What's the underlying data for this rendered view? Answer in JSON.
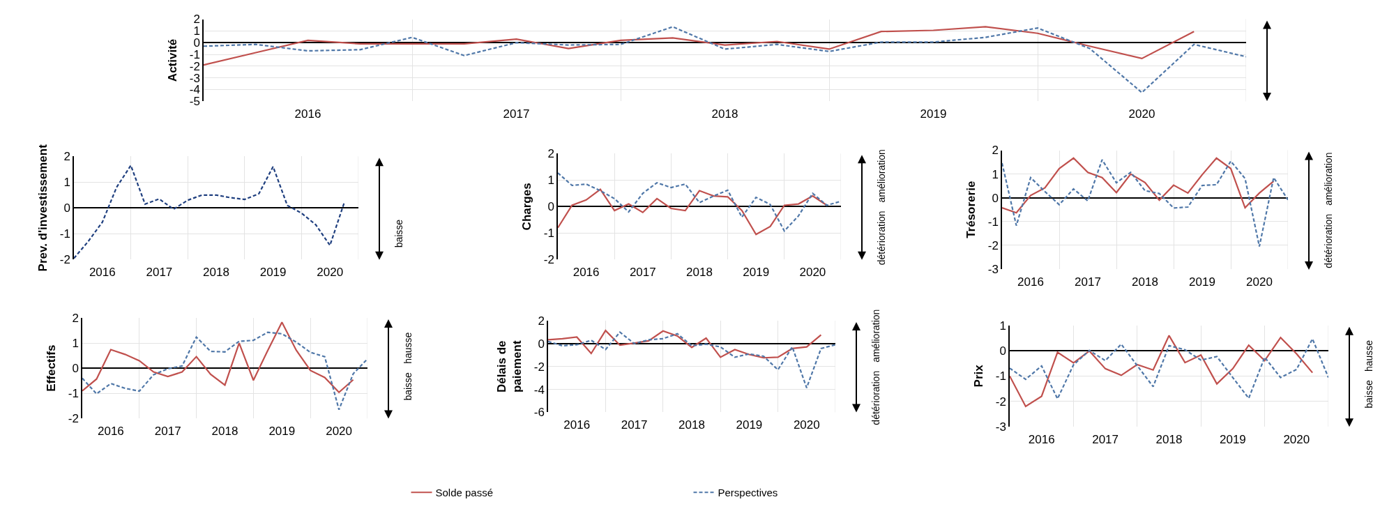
{
  "chart_data": [
    {
      "type": "line",
      "ylabel": "Activité",
      "x": [
        2016,
        2016.25,
        2016.5,
        2016.75,
        2017,
        2017.25,
        2017.5,
        2017.75,
        2018,
        2018.25,
        2018.5,
        2018.75,
        2019,
        2019.25,
        2019.5,
        2019.75,
        2020,
        2020.25,
        2020.5,
        2020.75,
        2021
      ],
      "xlim": [
        2016,
        2021
      ],
      "xticks": [
        {
          "value": 2016,
          "label": null
        },
        {
          "value": 2016.5,
          "label": "2016"
        },
        {
          "value": 2017,
          "label": null
        },
        {
          "value": 2017.5,
          "label": "2017"
        },
        {
          "value": 2018,
          "label": null
        },
        {
          "value": 2018.5,
          "label": "2018"
        },
        {
          "value": 2019,
          "label": null
        },
        {
          "value": 2019.5,
          "label": "2019"
        },
        {
          "value": 2020,
          "label": null
        },
        {
          "value": 2020.5,
          "label": "2020"
        },
        {
          "value": 2021,
          "label": null
        }
      ],
      "ylim": [
        -5,
        2
      ],
      "yticks": [
        -5,
        -4,
        -3,
        -2,
        -1,
        0,
        1,
        2
      ],
      "grid": true,
      "marker": "none",
      "series": [
        {
          "color": "#c0504d",
          "line_style": "solid",
          "values": [
            -1.9,
            -0.85,
            0.2,
            -0.1,
            -0.1,
            -0.1,
            0.3,
            -0.5,
            0.2,
            0.4,
            -0.2,
            0.1,
            -0.55,
            0.95,
            1.05,
            1.35,
            0.8,
            -0.3,
            -1.35,
            0.95,
            null
          ]
        },
        {
          "color": "#4f77a8",
          "line_style": "dashed",
          "values": [
            -0.3,
            -0.15,
            -0.7,
            -0.6,
            0.45,
            -1.1,
            0,
            -0.2,
            -0.15,
            1.35,
            -0.55,
            -0.15,
            -0.75,
            0.05,
            0.05,
            0.45,
            1.25,
            -0.5,
            -4.25,
            -0.15,
            -1.2
          ]
        }
      ]
    },
    {
      "type": "line",
      "ylabel": "Prev. d'investissement",
      "xlim": [
        2016,
        2021
      ],
      "xticks": [
        {
          "value": 2016,
          "label": null
        },
        {
          "value": 2016.5,
          "label": "2016"
        },
        {
          "value": 2017,
          "label": null
        },
        {
          "value": 2017.5,
          "label": "2017"
        },
        {
          "value": 2018,
          "label": null
        },
        {
          "value": 2018.5,
          "label": "2018"
        },
        {
          "value": 2019,
          "label": null
        },
        {
          "value": 2019.5,
          "label": "2019"
        },
        {
          "value": 2020,
          "label": null
        },
        {
          "value": 2020.5,
          "label": "2020"
        },
        {
          "value": 2021,
          "label": null
        }
      ],
      "ylim": [
        -2,
        2
      ],
      "yticks": [
        -2,
        -1,
        0,
        1,
        2
      ],
      "grid": true,
      "marker": "none",
      "series": [
        {
          "color": "#1f3f7f",
          "line_style": "dashed",
          "x": [
            2016,
            2016.25,
            2016.5,
            2016.75,
            2017,
            2017.25,
            2017.5,
            2017.75,
            2018,
            2018.25,
            2018.5,
            2018.75,
            2019,
            2019.25,
            2019.5,
            2019.75,
            2020,
            2020.25,
            2020.5,
            2020.75
          ],
          "values": [
            -1.95,
            -1.3,
            -0.55,
            0.8,
            1.65,
            0.15,
            0.35,
            -0.05,
            0.3,
            0.5,
            0.5,
            0.4,
            0.33,
            0.55,
            1.6,
            0.1,
            -0.2,
            -0.65,
            -1.45,
            0.2
          ]
        }
      ],
      "annotations": [
        "baisse"
      ]
    },
    {
      "type": "line",
      "ylabel": "Charges",
      "x": [
        2016,
        2016.25,
        2016.5,
        2016.75,
        2017,
        2017.25,
        2017.5,
        2017.75,
        2018,
        2018.25,
        2018.5,
        2018.75,
        2019,
        2019.25,
        2019.5,
        2019.75,
        2020,
        2020.25,
        2020.5,
        2020.75,
        2021
      ],
      "xlim": [
        2016,
        2021
      ],
      "xticks": [
        {
          "value": 2016,
          "label": null
        },
        {
          "value": 2016.5,
          "label": "2016"
        },
        {
          "value": 2017,
          "label": null
        },
        {
          "value": 2017.5,
          "label": "2017"
        },
        {
          "value": 2018,
          "label": null
        },
        {
          "value": 2018.5,
          "label": "2018"
        },
        {
          "value": 2019,
          "label": null
        },
        {
          "value": 2019.5,
          "label": "2019"
        },
        {
          "value": 2020,
          "label": null
        },
        {
          "value": 2020.5,
          "label": "2020"
        },
        {
          "value": 2021,
          "label": null
        }
      ],
      "ylim": [
        -2,
        2
      ],
      "yticks": [
        -2,
        -1,
        0,
        1,
        2
      ],
      "grid": true,
      "marker": "none",
      "series": [
        {
          "color": "#c0504d",
          "line_style": "solid",
          "values": [
            -0.8,
            0.05,
            0.25,
            0.65,
            -0.15,
            0.1,
            -0.22,
            0.3,
            -0.07,
            -0.15,
            0.6,
            0.4,
            0.37,
            -0.15,
            -1.05,
            -0.75,
            0.05,
            0.1,
            0.4,
            0.05,
            null
          ]
        },
        {
          "color": "#4f77a8",
          "line_style": "dashed",
          "values": [
            1.27,
            0.8,
            0.85,
            0.6,
            0.3,
            -0.2,
            0.5,
            0.9,
            0.72,
            0.85,
            0.15,
            0.4,
            0.62,
            -0.4,
            0.35,
            0.08,
            -0.92,
            -0.35,
            0.5,
            0.05,
            0.2
          ]
        }
      ],
      "annotations": [
        "amélioration",
        "détérioration"
      ]
    },
    {
      "type": "line",
      "ylabel": "Trésorerie",
      "x": [
        2016,
        2016.25,
        2016.5,
        2016.75,
        2017,
        2017.25,
        2017.5,
        2017.75,
        2018,
        2018.25,
        2018.5,
        2018.75,
        2019,
        2019.25,
        2019.5,
        2019.75,
        2020,
        2020.25,
        2020.5,
        2020.75,
        2021
      ],
      "xlim": [
        2016,
        2021
      ],
      "xticks": [
        {
          "value": 2016,
          "label": null
        },
        {
          "value": 2016.5,
          "label": "2016"
        },
        {
          "value": 2017,
          "label": null
        },
        {
          "value": 2017.5,
          "label": "2017"
        },
        {
          "value": 2018,
          "label": null
        },
        {
          "value": 2018.5,
          "label": "2018"
        },
        {
          "value": 2019,
          "label": null
        },
        {
          "value": 2019.5,
          "label": "2019"
        },
        {
          "value": 2020,
          "label": null
        },
        {
          "value": 2020.5,
          "label": "2020"
        },
        {
          "value": 2021,
          "label": null
        }
      ],
      "ylim": [
        -3,
        2
      ],
      "yticks": [
        -3,
        -2,
        -1,
        0,
        1,
        2
      ],
      "grid": true,
      "marker": "none",
      "series": [
        {
          "color": "#c0504d",
          "line_style": "solid",
          "values": [
            -0.42,
            -0.63,
            0.1,
            0.42,
            1.23,
            1.67,
            1.07,
            0.85,
            0.22,
            1.0,
            0.64,
            -0.1,
            0.53,
            0.2,
            0.97,
            1.67,
            1.23,
            -0.42,
            0.2,
            0.7,
            null
          ]
        },
        {
          "color": "#4f77a8",
          "line_style": "dashed",
          "values": [
            1.46,
            -1.17,
            0.85,
            0.26,
            -0.29,
            0.37,
            -0.13,
            1.6,
            0.63,
            1.07,
            0.3,
            0.18,
            -0.43,
            -0.39,
            0.52,
            0.55,
            1.54,
            0.81,
            -2.05,
            0.85,
            -0.09
          ]
        }
      ],
      "annotations": [
        "amélioration",
        "détérioration"
      ]
    },
    {
      "type": "line",
      "ylabel": "Effectifs",
      "x": [
        2016,
        2016.25,
        2016.5,
        2016.75,
        2017,
        2017.25,
        2017.5,
        2017.75,
        2018,
        2018.25,
        2018.5,
        2018.75,
        2019,
        2019.25,
        2019.5,
        2019.75,
        2020,
        2020.25,
        2020.5,
        2020.75,
        2021
      ],
      "xlim": [
        2016,
        2021
      ],
      "xticks": [
        {
          "value": 2016,
          "label": null
        },
        {
          "value": 2016.5,
          "label": "2016"
        },
        {
          "value": 2017,
          "label": null
        },
        {
          "value": 2017.5,
          "label": "2017"
        },
        {
          "value": 2018,
          "label": null
        },
        {
          "value": 2018.5,
          "label": "2018"
        },
        {
          "value": 2019,
          "label": null
        },
        {
          "value": 2019.5,
          "label": "2019"
        },
        {
          "value": 2020,
          "label": null
        },
        {
          "value": 2020.5,
          "label": "2020"
        },
        {
          "value": 2021,
          "label": null
        }
      ],
      "ylim": [
        -2,
        2
      ],
      "yticks": [
        -2,
        -1,
        0,
        1,
        2
      ],
      "grid": true,
      "marker": "none",
      "series": [
        {
          "color": "#c0504d",
          "line_style": "solid",
          "values": [
            -0.9,
            -0.43,
            0.74,
            0.55,
            0.3,
            -0.15,
            -0.33,
            -0.15,
            0.46,
            -0.24,
            -0.67,
            1.0,
            -0.48,
            0.7,
            1.83,
            0.72,
            -0.09,
            -0.37,
            -0.96,
            -0.46,
            null
          ]
        },
        {
          "color": "#4f77a8",
          "line_style": "dashed",
          "values": [
            -0.4,
            -1.02,
            -0.61,
            -0.8,
            -0.91,
            -0.26,
            -0.02,
            0.09,
            1.24,
            0.67,
            0.65,
            1.07,
            1.11,
            1.43,
            1.37,
            1.04,
            0.63,
            0.46,
            -1.65,
            -0.22,
            0.37
          ]
        }
      ],
      "annotations": [
        "hausse",
        "baisse"
      ]
    },
    {
      "type": "line",
      "ylabel": "Délais de\npaiement",
      "x": [
        2016,
        2016.25,
        2016.5,
        2016.75,
        2017,
        2017.25,
        2017.5,
        2017.75,
        2018,
        2018.25,
        2018.5,
        2018.75,
        2019,
        2019.25,
        2019.5,
        2019.75,
        2020,
        2020.25,
        2020.5,
        2020.75,
        2021
      ],
      "xlim": [
        2016,
        2021
      ],
      "xticks": [
        {
          "value": 2016,
          "label": null
        },
        {
          "value": 2016.5,
          "label": "2016"
        },
        {
          "value": 2017,
          "label": null
        },
        {
          "value": 2017.5,
          "label": "2017"
        },
        {
          "value": 2018,
          "label": null
        },
        {
          "value": 2018.5,
          "label": "2018"
        },
        {
          "value": 2019,
          "label": null
        },
        {
          "value": 2019.5,
          "label": "2019"
        },
        {
          "value": 2020,
          "label": null
        },
        {
          "value": 2020.5,
          "label": "2020"
        },
        {
          "value": 2021,
          "label": null
        }
      ],
      "ylim": [
        -6,
        2
      ],
      "yticks": [
        -6,
        -4,
        -2,
        0,
        2
      ],
      "grid": true,
      "legend": "bottom",
      "marker": "none",
      "series": [
        {
          "name": "Solde passé",
          "color": "#c0504d",
          "line_style": "solid",
          "values": [
            0.33,
            0.43,
            0.57,
            -0.86,
            1.14,
            -0.14,
            0.05,
            0.24,
            1.1,
            0.67,
            -0.33,
            0.48,
            -1.19,
            -0.52,
            -0.95,
            -1.24,
            -1.19,
            -0.43,
            -0.29,
            0.76,
            null
          ]
        },
        {
          "name": "Perspectives",
          "color": "#4f77a8",
          "line_style": "dashed",
          "values": [
            0.19,
            -0.19,
            -0.1,
            0.29,
            -0.52,
            1.0,
            0,
            0.33,
            0.43,
            0.86,
            -0.19,
            -0.05,
            -0.29,
            -1.19,
            -0.9,
            -1.1,
            -2.29,
            -0.29,
            -3.86,
            -0.43,
            -0.1
          ]
        }
      ],
      "annotations": [
        "amélioration",
        "détérioration"
      ]
    },
    {
      "type": "line",
      "ylabel": "Prix",
      "x": [
        2016,
        2016.25,
        2016.5,
        2016.75,
        2017,
        2017.25,
        2017.5,
        2017.75,
        2018,
        2018.25,
        2018.5,
        2018.75,
        2019,
        2019.25,
        2019.5,
        2019.75,
        2020,
        2020.25,
        2020.5,
        2020.75,
        2021
      ],
      "xlim": [
        2016,
        2021
      ],
      "xticks": [
        {
          "value": 2016,
          "label": null
        },
        {
          "value": 2016.5,
          "label": "2016"
        },
        {
          "value": 2017,
          "label": null
        },
        {
          "value": 2017.5,
          "label": "2017"
        },
        {
          "value": 2018,
          "label": null
        },
        {
          "value": 2018.5,
          "label": "2018"
        },
        {
          "value": 2019,
          "label": null
        },
        {
          "value": 2019.5,
          "label": "2019"
        },
        {
          "value": 2020,
          "label": null
        },
        {
          "value": 2020.5,
          "label": "2020"
        },
        {
          "value": 2021,
          "label": null
        }
      ],
      "ylim": [
        -3,
        1
      ],
      "yticks": [
        -3,
        -2,
        -1,
        0,
        1
      ],
      "grid": true,
      "marker": "none",
      "series": [
        {
          "color": "#c0504d",
          "line_style": "solid",
          "values": [
            -1.0,
            -2.2,
            -1.8,
            -0.06,
            -0.48,
            -0.01,
            -0.71,
            -0.97,
            -0.55,
            -0.76,
            0.6,
            -0.47,
            -0.17,
            -1.31,
            -0.71,
            0.22,
            -0.39,
            0.52,
            -0.12,
            -0.87,
            null
          ]
        },
        {
          "color": "#4f77a8",
          "line_style": "dashed",
          "values": [
            -0.69,
            -1.13,
            -0.6,
            -1.9,
            -0.56,
            0.01,
            -0.39,
            0.26,
            -0.59,
            -1.42,
            0.2,
            0.04,
            -0.37,
            -0.23,
            -1.06,
            -1.88,
            -0.26,
            -1.06,
            -0.74,
            0.47,
            -1.06
          ]
        }
      ],
      "annotations": [
        "hausse",
        "baisse"
      ]
    }
  ]
}
